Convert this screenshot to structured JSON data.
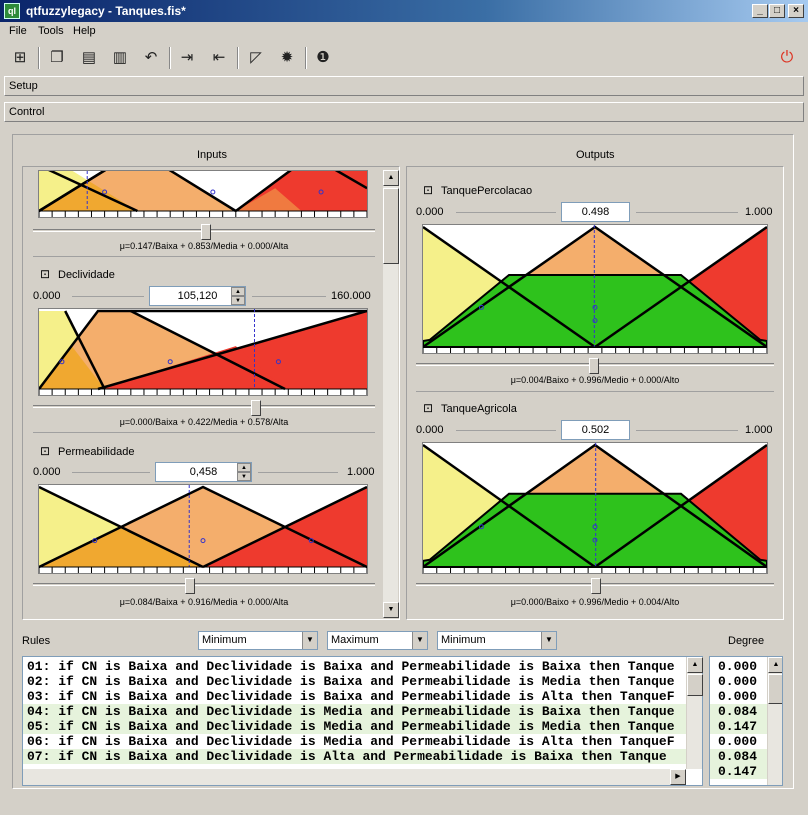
{
  "window": {
    "title": "qtfuzzylegacy - Tanques.fis*",
    "icon_label": "ql"
  },
  "menu": [
    "File",
    "Tools",
    "Help"
  ],
  "toolbar_icons": [
    "new-icon",
    "open-icon",
    "import-icon",
    "export-icon",
    "undo-icon",
    "in-icon",
    "out-icon",
    "edit-icon",
    "gear-icon",
    "info-icon",
    "power-icon"
  ],
  "sections": {
    "setup": "Setup",
    "control": "Control"
  },
  "inputs": {
    "header": "Inputs",
    "top_partial": {
      "membership": "μ=0.147/Baixa + 0.853/Media + 0.000/Alta",
      "level": 0.147
    },
    "variables": [
      {
        "name": "Declividade",
        "min": "0.000",
        "max": "160.000",
        "value": "105,120",
        "membership": "μ=0.000/Baixa + 0.422/Media + 0.578/Alta",
        "level": 0.657
      },
      {
        "name": "Permeabilidade",
        "min": "0.000",
        "max": "1.000",
        "value": "0,458",
        "membership": "μ=0.084/Baixa + 0.916/Media + 0.000/Alta",
        "level": 0.458
      }
    ]
  },
  "outputs": {
    "header": "Outputs",
    "variables": [
      {
        "name": "TanquePercolacao",
        "min": "0.000",
        "max": "1.000",
        "value": "0.498",
        "membership": "μ=0.004/Baixo + 0.996/Medio + 0.000/Alto",
        "level": 0.498
      },
      {
        "name": "TanqueAgricola",
        "min": "0.000",
        "max": "1.000",
        "value": "0.502",
        "membership": "μ=0.000/Baixo + 0.996/Medio + 0.004/Alto",
        "level": 0.502
      }
    ]
  },
  "rules_section": {
    "label": "Rules",
    "degree_label": "Degree",
    "operators": [
      "Minimum",
      "Maximum",
      "Minimum"
    ]
  },
  "rules": [
    {
      "text": "01: if CN is Baixa and Declividade is Baixa and Permeabilidade is Baixa then Tanque",
      "degree": "0.000",
      "active": false
    },
    {
      "text": "02: if CN is Baixa and Declividade is Baixa and Permeabilidade is Media then Tanque",
      "degree": "0.000",
      "active": false
    },
    {
      "text": "03: if CN is Baixa and Declividade is Baixa and Permeabilidade is Alta then TanqueF",
      "degree": "0.000",
      "active": false
    },
    {
      "text": "04: if CN is Baixa and Declividade is Media and Permeabilidade is Baixa then Tanque",
      "degree": "0.084",
      "active": true
    },
    {
      "text": "05: if CN is Baixa and Declividade is Media and Permeabilidade is Media then Tanque",
      "degree": "0.147",
      "active": true
    },
    {
      "text": "06: if CN is Baixa and Declividade is Media and Permeabilidade is Alta then TanqueF",
      "degree": "0.000",
      "active": false
    },
    {
      "text": "07: if CN is Baixa and Declividade is Alta and Permeabilidade is Baixa then Tanque",
      "degree": "0.084",
      "active": true
    }
  ],
  "extra_degree": "0.147",
  "colors": {
    "low": "#f5f08a",
    "mid": "#f4ae6c",
    "high": "#ee3a2e",
    "low_dark": "#f0a830",
    "mid_dark": "#f07a40",
    "output_fill": "#2ec21c",
    "line": "#000000",
    "cursor": "#3333cc"
  }
}
